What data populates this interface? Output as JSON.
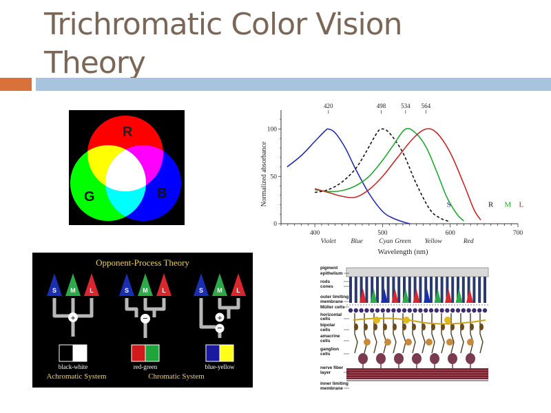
{
  "slide": {
    "title": "Trichromatic Color Vision Theory"
  },
  "rgb_venn": {
    "labels": {
      "r": "R",
      "g": "G",
      "b": "B"
    },
    "colors": {
      "red": "#ff0000",
      "green": "#00ff00",
      "blue": "#0000ff",
      "yellow": "#ffff00",
      "cyan": "#00ffff",
      "magenta": "#ff00ff",
      "white": "#ffffff"
    }
  },
  "opponent": {
    "title": "Opponent-Process Theory",
    "cone_labels": [
      "S",
      "M",
      "L"
    ],
    "cone_colors": {
      "S": "#1a2fb0",
      "M": "#2fa84a",
      "L": "#d9272e"
    },
    "swatches": [
      {
        "label": "black-white",
        "left": "#000000",
        "right": "#ffffff"
      },
      {
        "label": "red-green",
        "left": "#d21a1a",
        "right": "#1ea63c"
      },
      {
        "label": "blue-yellow",
        "left": "#1a1aa0",
        "right": "#ffff1a"
      }
    ],
    "systems": {
      "achromatic": "Achromatic System",
      "chromatic": "Chromatic System"
    }
  },
  "retina": {
    "labels": [
      "pigment epithelium",
      "rods",
      "cones",
      "outer limiting membrane",
      "Müller cells",
      "horizontal cells",
      "bipolar cells",
      "amacrine cells",
      "ganglion cells",
      "nerve fiber layer",
      "inner limiting membrane"
    ]
  },
  "chart_data": {
    "type": "line",
    "title": "",
    "xlabel": "Wavelength (nm)",
    "ylabel": "Normalized absorbance",
    "xlim": [
      350,
      700
    ],
    "ylim": [
      0,
      120
    ],
    "x_ticks": [
      400,
      500,
      600,
      700
    ],
    "y_ticks": [
      0,
      50,
      100
    ],
    "color_names": [
      {
        "x": 420,
        "label": "Violet"
      },
      {
        "x": 462,
        "label": "Blue"
      },
      {
        "x": 505,
        "label": "Cyan"
      },
      {
        "x": 530,
        "label": "Green"
      },
      {
        "x": 575,
        "label": "Yellow"
      },
      {
        "x": 627,
        "label": "Red"
      }
    ],
    "peaks": [
      420,
      498,
      534,
      564
    ],
    "series": [
      {
        "name": "S",
        "color": "#1f2bb0",
        "dash": false,
        "label_pos": [
          598,
          18
        ],
        "x": [
          359,
          380,
          400,
          415,
          420,
          430,
          445,
          460,
          480,
          500,
          515,
          530,
          540
        ],
        "y": [
          60,
          72,
          87,
          98,
          100,
          96,
          80,
          58,
          32,
          13,
          6,
          2,
          0
        ]
      },
      {
        "name": "R",
        "color": "#111111",
        "dash": true,
        "label_pos": [
          660,
          18
        ],
        "x": [
          400,
          420,
          440,
          460,
          475,
          490,
          498,
          510,
          530,
          550,
          570,
          585,
          600
        ],
        "y": [
          33,
          36,
          44,
          58,
          75,
          94,
          100,
          96,
          75,
          42,
          15,
          6,
          2
        ]
      },
      {
        "name": "M",
        "color": "#1fa832",
        "dash": false,
        "label_pos": [
          685,
          18
        ],
        "x": [
          400,
          420,
          440,
          460,
          480,
          500,
          515,
          534,
          550,
          565,
          580,
          595,
          610,
          620
        ],
        "y": [
          36,
          34,
          35,
          40,
          50,
          67,
          82,
          100,
          95,
          80,
          55,
          28,
          10,
          3
        ]
      },
      {
        "name": "L",
        "color": "#c42626",
        "dash": false,
        "label_pos": [
          705,
          18
        ],
        "x": [
          400,
          420,
          440,
          460,
          480,
          500,
          520,
          545,
          564,
          580,
          600,
          620,
          635,
          645
        ],
        "y": [
          37,
          33,
          29,
          28,
          36,
          50,
          68,
          90,
          100,
          96,
          75,
          42,
          15,
          4
        ]
      }
    ]
  }
}
